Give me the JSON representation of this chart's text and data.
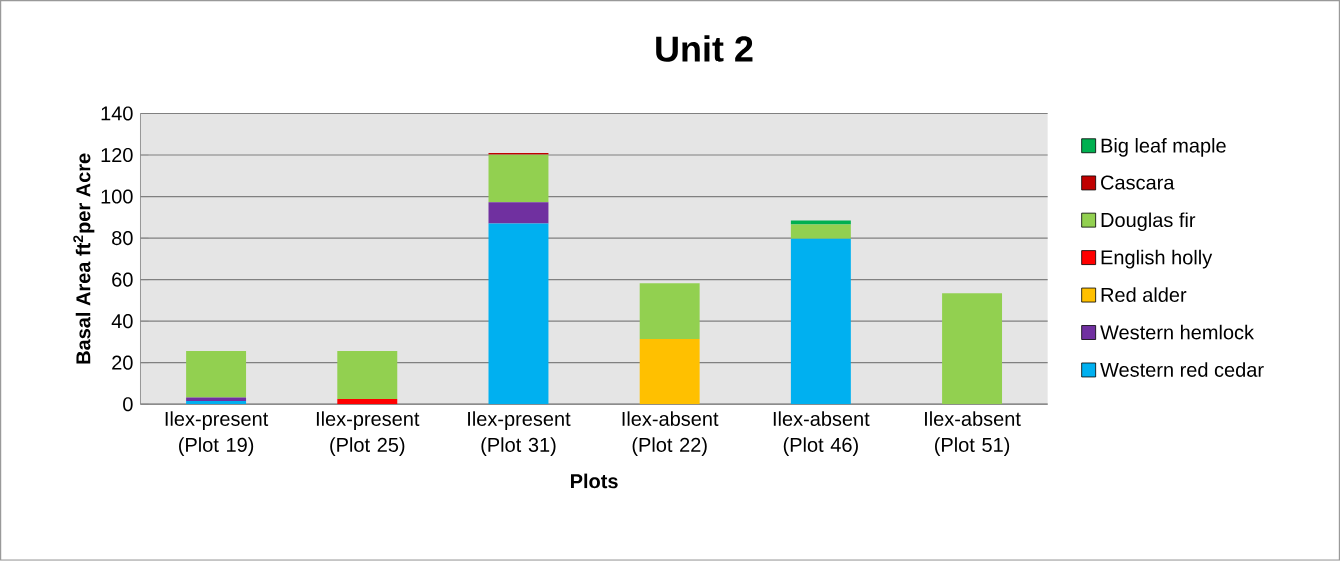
{
  "chart_data": {
    "type": "bar",
    "title": "Unit 2",
    "xlabel": "Plots",
    "ylabel": "Basal Area ft$^{2}$per Acre",
    "categories": [
      "Ilex-present (Plot 19)",
      "Ilex-present (Plot 25)",
      "Ilex-present (Plot 31)",
      "Ilex-absent (Plot 22)",
      "Ilex-absent (Plot 46)",
      "Ilex-absent (Plot 51)"
    ],
    "stacked": true,
    "ylim": [
      0,
      140
    ],
    "yticks": [
      0,
      20,
      40,
      60,
      80,
      100,
      120,
      140
    ],
    "grid": "y",
    "legend": "right",
    "series": [
      {
        "name": "Western red cedar",
        "color": "#00b0f0",
        "values": [
          1.5,
          null,
          87,
          null,
          79.7,
          null
        ]
      },
      {
        "name": "Western hemlock",
        "color": "#7030a0",
        "values": [
          1.8,
          null,
          10.3,
          null,
          null,
          null
        ]
      },
      {
        "name": "Red alder",
        "color": "#ffc000",
        "values": [
          null,
          null,
          null,
          31.4,
          null,
          null
        ]
      },
      {
        "name": "English holly",
        "color": "#ff0000",
        "values": [
          null,
          2.5,
          null,
          null,
          null,
          null
        ]
      },
      {
        "name": "Douglas fir",
        "color": "#92d050",
        "values": [
          22.3,
          23.1,
          22.9,
          26.9,
          6.8,
          53.5
        ]
      },
      {
        "name": "Cascara",
        "color": "#c00000",
        "values": [
          null,
          null,
          0.8,
          null,
          null,
          null
        ]
      },
      {
        "name": "Big leaf maple",
        "color": "#00b050",
        "values": [
          null,
          null,
          null,
          null,
          2,
          null
        ]
      }
    ]
  }
}
